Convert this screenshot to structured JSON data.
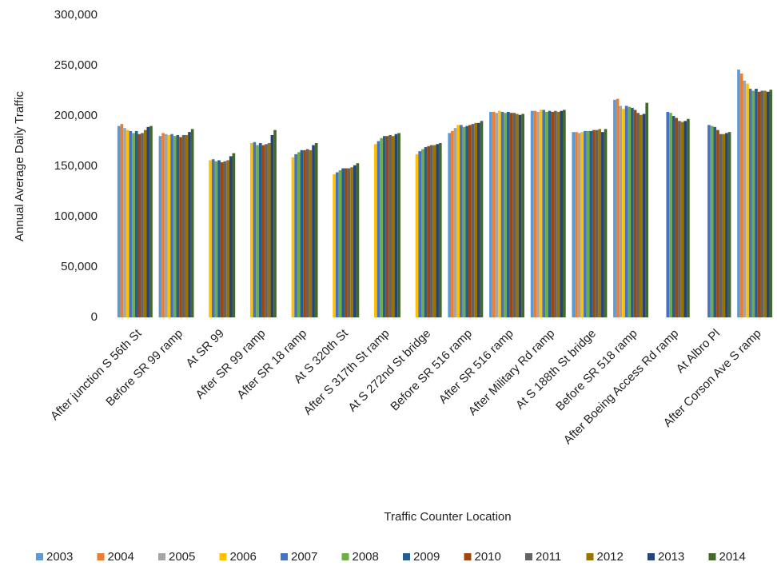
{
  "chart_data": {
    "type": "bar",
    "x_label": "Traffic Counter Location",
    "y_label": "Annual Average Daily Traffic",
    "categories": [
      "After junction S 56th St",
      "Before SR 99 ramp",
      "At SR 99",
      "After SR 99 ramp",
      "After SR 18 ramp",
      "At S 320th St",
      "After S 317th St ramp",
      "At S 272nd St bridge",
      "Before SR 516 ramp",
      "After SR 516 ramp",
      "After Military Rd ramp",
      "At S 188th St bridge",
      "Before SR 518 ramp",
      "After Boeing Access Rd ramp",
      "At Albro Pl",
      "After Corson Ave S ramp"
    ],
    "series": [
      {
        "name": "2003",
        "color": "#5b9bd5",
        "values": [
          190000,
          180000,
          null,
          null,
          null,
          null,
          null,
          null,
          183000,
          204000,
          205000,
          184000,
          216000,
          null,
          null,
          246000
        ]
      },
      {
        "name": "2004",
        "color": "#ed7d31",
        "values": [
          192000,
          183000,
          null,
          null,
          null,
          null,
          null,
          null,
          185000,
          204000,
          205000,
          184000,
          217000,
          null,
          null,
          242000
        ]
      },
      {
        "name": "2005",
        "color": "#a5a5a5",
        "values": [
          188000,
          182000,
          null,
          null,
          null,
          null,
          null,
          null,
          188000,
          203000,
          204000,
          183000,
          210000,
          null,
          null,
          235000
        ]
      },
      {
        "name": "2006",
        "color": "#ffc000",
        "values": [
          186000,
          181000,
          156000,
          173000,
          159000,
          142000,
          172000,
          162000,
          191000,
          205000,
          206000,
          184000,
          207000,
          null,
          null,
          232000
        ]
      },
      {
        "name": "2007",
        "color": "#4472c4",
        "values": [
          185000,
          182000,
          157000,
          174000,
          162000,
          144000,
          175000,
          165000,
          191000,
          204000,
          206000,
          185000,
          210000,
          204000,
          191000,
          227000
        ]
      },
      {
        "name": "2008",
        "color": "#70ad47",
        "values": [
          183000,
          180000,
          155000,
          171000,
          164000,
          146000,
          178000,
          167000,
          189000,
          203000,
          204000,
          185000,
          209000,
          203000,
          190000,
          225000
        ]
      },
      {
        "name": "2009",
        "color": "#255e91",
        "values": [
          185000,
          181000,
          156000,
          173000,
          166000,
          148000,
          180000,
          169000,
          190000,
          204000,
          205000,
          185000,
          208000,
          200000,
          189000,
          227000
        ]
      },
      {
        "name": "2010",
        "color": "#9e480e",
        "values": [
          182000,
          179000,
          154000,
          171000,
          166000,
          148000,
          180000,
          170000,
          191000,
          203000,
          204000,
          186000,
          206000,
          198000,
          186000,
          224000
        ]
      },
      {
        "name": "2011",
        "color": "#636363",
        "values": [
          183000,
          181000,
          155000,
          172000,
          167000,
          148000,
          181000,
          171000,
          192000,
          203000,
          205000,
          186000,
          203000,
          195000,
          182000,
          225000
        ]
      },
      {
        "name": "2012",
        "color": "#997300",
        "values": [
          186000,
          181000,
          156000,
          173000,
          166000,
          149000,
          180000,
          171000,
          193000,
          202000,
          204000,
          187000,
          201000,
          194000,
          182000,
          225000
        ]
      },
      {
        "name": "2013",
        "color": "#264478",
        "values": [
          189000,
          184000,
          160000,
          181000,
          171000,
          151000,
          182000,
          172000,
          193000,
          201000,
          205000,
          184000,
          202000,
          195000,
          183000,
          224000
        ]
      },
      {
        "name": "2014",
        "color": "#43682b",
        "values": [
          190000,
          187000,
          163000,
          186000,
          173000,
          153000,
          183000,
          173000,
          195000,
          202000,
          206000,
          187000,
          213000,
          197000,
          184000,
          226000
        ]
      }
    ],
    "ylim": [
      0,
      300000
    ],
    "yticks": [
      0,
      {
        "value": 50000,
        "label": "50,000"
      },
      {
        "value": 100000,
        "label": "100,000"
      },
      {
        "value": 150000,
        "label": "150,000"
      },
      {
        "value": 200000,
        "label": "200,000"
      },
      {
        "value": 250000,
        "label": "250,000"
      },
      {
        "value": 300000,
        "label": "300,000"
      }
    ],
    "grid": false,
    "legend": "bottom"
  }
}
